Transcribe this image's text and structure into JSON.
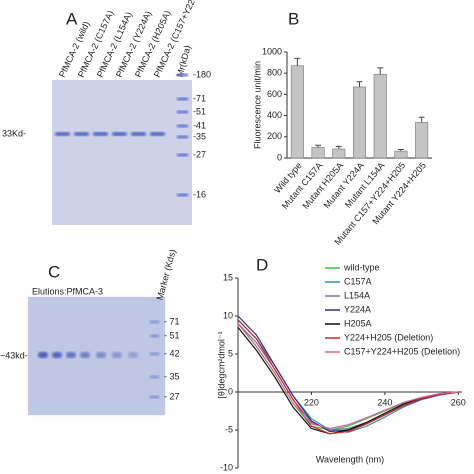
{
  "panels": {
    "a": "A",
    "b": "B",
    "c": "C",
    "d": "D"
  },
  "gel_a": {
    "lanes": [
      "PfMCA-2 (wild)",
      "PfMCA-2 (C157A)",
      "PfMCA-2 (L154A)",
      "PfMCA-2 (Y224A)",
      "PfMCA-2 (H205A)",
      "PfMCA-2 (C157+Y224+H205)"
    ],
    "marker_title": "Mr(kDa)",
    "markers": [
      "-180",
      "-71",
      "-51",
      "-41",
      "-35",
      "-27",
      "-16"
    ],
    "band_label": "33Kd-"
  },
  "gel_c": {
    "title": "Elutions:PfMCA-3",
    "marker_title": "Marker (Kds)",
    "markers": [
      "- 71",
      "- 51",
      "- 42",
      "- 35",
      "- 27"
    ],
    "band_label": "~43kd-"
  },
  "chart_data": [
    {
      "type": "bar",
      "y_label": "Fluorescence unit/min",
      "categories": [
        "Wild type",
        "Mutant C157A",
        "Mutant H205A",
        "Mutant Y224A",
        "Mutant L154A",
        "Mutant C157+Y224+H205",
        "Mutant Y224+H205"
      ],
      "series": [
        {
          "color": "#c4c4c4",
          "values": [
            870,
            100,
            85,
            670,
            790,
            65,
            335
          ],
          "errors": [
            70,
            20,
            25,
            50,
            60,
            15,
            50
          ]
        }
      ],
      "ylim": [
        0,
        1000
      ],
      "yticks": [
        0,
        200,
        400,
        600,
        800,
        1000
      ]
    },
    {
      "type": "line",
      "x_label": "Wavelength (nm)",
      "y_label": "[θ]degcm²dmol⁻¹",
      "x": [
        200,
        205,
        210,
        215,
        220,
        225,
        230,
        235,
        240,
        245,
        250,
        255,
        260
      ],
      "series": [
        {
          "name": "wild-type",
          "color": "#2ecc40",
          "values": [
            9,
            6,
            2.5,
            -1.5,
            -4.5,
            -5,
            -4.5,
            -3.5,
            -2.5,
            -1.5,
            -0.8,
            -0.3,
            0
          ]
        },
        {
          "name": "C157A",
          "color": "#3a8fb0",
          "values": [
            9.5,
            7,
            3.5,
            -0.5,
            -3.5,
            -5,
            -5.3,
            -4.5,
            -3.3,
            -2,
            -1,
            -0.4,
            0
          ]
        },
        {
          "name": "L154A",
          "color": "#6d7f99",
          "values": [
            9,
            6.5,
            3,
            -1,
            -4,
            -5,
            -4.8,
            -4,
            -3,
            -1.8,
            -1,
            -0.4,
            0
          ]
        },
        {
          "name": "Y224A",
          "color": "#2a2f8f",
          "values": [
            10,
            7.5,
            3.5,
            -0.5,
            -3.8,
            -5.2,
            -5,
            -4.2,
            -3,
            -1.8,
            -0.9,
            -0.3,
            0
          ]
        },
        {
          "name": "H205A",
          "color": "#111111",
          "values": [
            8.5,
            5.5,
            2,
            -2,
            -4.8,
            -5.5,
            -5,
            -4,
            -2.8,
            -1.6,
            -0.8,
            -0.3,
            0
          ]
        },
        {
          "name": "Y224+H205 (Deletion)",
          "color": "#d7261e",
          "values": [
            9.5,
            7,
            3,
            -1,
            -4.5,
            -5.5,
            -5.2,
            -4.2,
            -3,
            -1.8,
            -0.8,
            -0.3,
            0
          ]
        },
        {
          "name": "C157+Y224+H205 (Deletion)",
          "color": "#e0609a",
          "values": [
            9,
            6,
            2.5,
            -1.5,
            -4.2,
            -4.8,
            -4.3,
            -3.4,
            -2.4,
            -1.4,
            -0.7,
            -0.2,
            0
          ]
        }
      ],
      "xlim": [
        200,
        261
      ],
      "ylim": [
        -10,
        15
      ],
      "xticks": [
        220,
        240,
        260
      ],
      "yticks": [
        15,
        10,
        5,
        0,
        -5,
        -10
      ]
    }
  ]
}
